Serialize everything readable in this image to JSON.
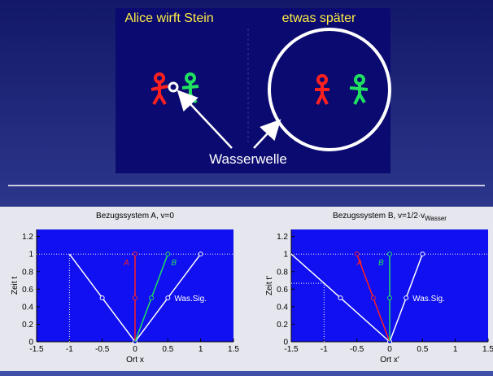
{
  "illustration": {
    "left_caption": "Alice wirft Stein",
    "right_caption": "etwas später",
    "label": "Wasserwelle"
  },
  "chart_data": [
    {
      "type": "line",
      "title": "Bezugssystem A, v=0",
      "xlabel": "Ort x",
      "ylabel": "Zeit t",
      "xlim": [
        -1.5,
        1.5
      ],
      "xticks": [
        -1.5,
        -1,
        -0.5,
        0,
        0.5,
        1,
        1.5
      ],
      "ylim": [
        0,
        1.28
      ],
      "yticks": [
        0,
        0.2,
        0.4,
        0.6,
        0.8,
        1,
        1.2
      ],
      "series": [
        {
          "name": "Was.Sig.",
          "color": "#ffffff",
          "x": [
            -1,
            -0.5,
            0,
            0.5,
            1
          ],
          "y": [
            1,
            0.5,
            0,
            0.5,
            1
          ]
        },
        {
          "name": "A",
          "color": "#ff2020",
          "x": [
            0,
            0,
            0
          ],
          "y": [
            0,
            0.5,
            1
          ]
        },
        {
          "name": "B",
          "color": "#20e060",
          "x": [
            0,
            0.25,
            0.5
          ],
          "y": [
            0,
            0.5,
            1
          ]
        }
      ],
      "guides": [
        {
          "x": [
            -1.5,
            1.5
          ],
          "y": [
            1,
            1
          ]
        },
        {
          "x": [
            -1,
            -1
          ],
          "y": [
            0,
            1
          ]
        }
      ]
    },
    {
      "type": "line",
      "title": "Bezugssystem B, v=1/2·v",
      "title_subscript": "Wasser",
      "xlabel": "Ort x'",
      "ylabel": "Zeit t'",
      "xlim": [
        -1.5,
        1.5
      ],
      "xticks": [
        -1.5,
        -1,
        -0.5,
        0,
        0.5,
        1,
        1.5
      ],
      "ylim": [
        0,
        1.28
      ],
      "yticks": [
        0,
        0.2,
        0.4,
        0.6,
        0.8,
        1,
        1.2
      ],
      "series": [
        {
          "name": "Was.Sig.",
          "color": "#ffffff",
          "x": [
            -1.5,
            -0.75,
            0,
            0.25,
            0.5
          ],
          "y": [
            1,
            0.5,
            0,
            0.5,
            1
          ]
        },
        {
          "name": "A",
          "color": "#ff2020",
          "x": [
            0,
            -0.25,
            -0.5
          ],
          "y": [
            0,
            0.5,
            1
          ]
        },
        {
          "name": "B",
          "color": "#20e060",
          "x": [
            0,
            0,
            0
          ],
          "y": [
            0,
            0.5,
            1
          ]
        }
      ],
      "guides": [
        {
          "x": [
            -1.5,
            1.5
          ],
          "y": [
            1,
            1
          ]
        },
        {
          "x": [
            -1,
            -1
          ],
          "y": [
            0,
            0.667
          ]
        },
        {
          "x": [
            -1.5,
            -1
          ],
          "y": [
            0.667,
            0.667
          ]
        }
      ]
    }
  ]
}
